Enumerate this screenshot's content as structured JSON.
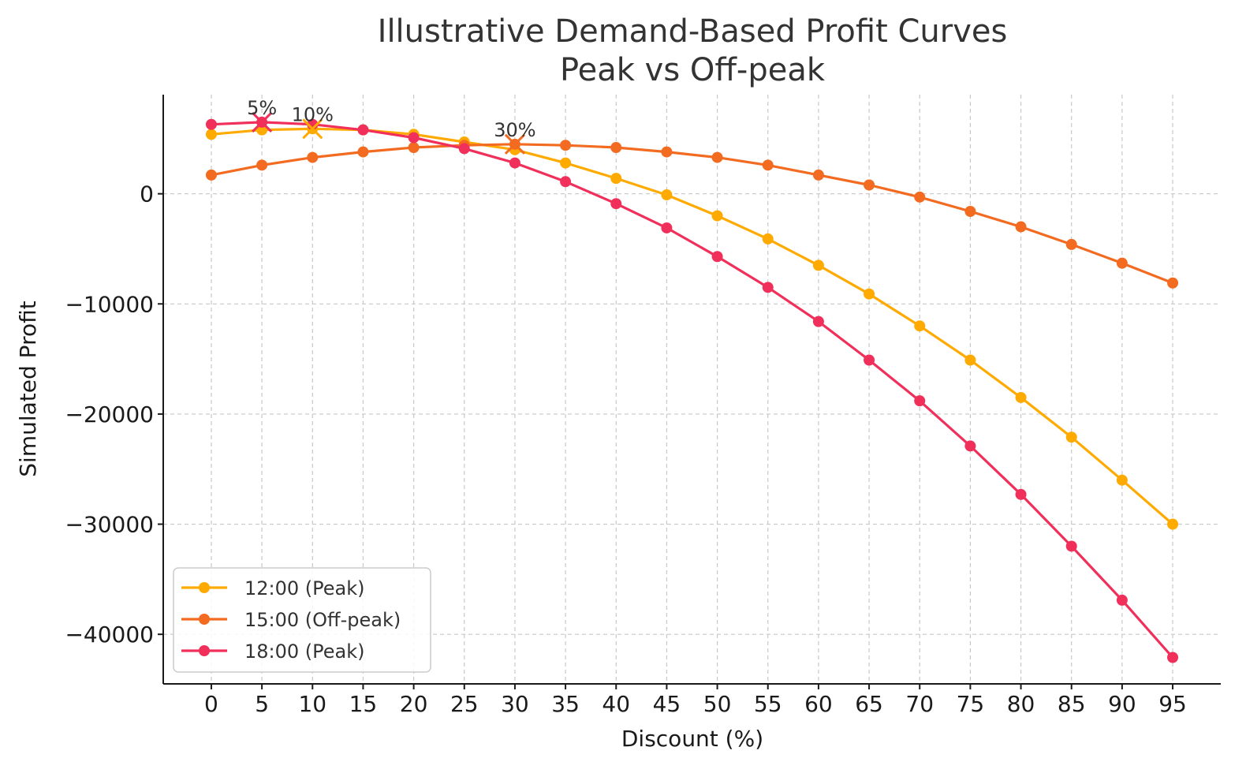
{
  "chart_data": {
    "type": "line",
    "title": "Illustrative Demand-Based Profit Curves",
    "subtitle": "Peak vs Off-peak",
    "xlabel": "Discount (%)",
    "ylabel": "Simulated Profit",
    "x": [
      0,
      5,
      10,
      15,
      20,
      25,
      30,
      35,
      40,
      45,
      50,
      55,
      60,
      65,
      70,
      75,
      80,
      85,
      90,
      95
    ],
    "xlim": [
      -4.75,
      99.75
    ],
    "ylim": [
      -44500,
      9000
    ],
    "x_ticks": [
      0,
      5,
      10,
      15,
      20,
      25,
      30,
      35,
      40,
      45,
      50,
      55,
      60,
      65,
      70,
      75,
      80,
      85,
      90,
      95
    ],
    "y_ticks": [
      0,
      -10000,
      -20000,
      -30000,
      -40000
    ],
    "y_tick_labels": [
      "0",
      "−10000",
      "−20000",
      "−30000",
      "−40000"
    ],
    "grid": true,
    "legend_position": "lower-left",
    "series": [
      {
        "name": "12:00 (Peak)",
        "color": "#FFAA00",
        "values": [
          5400,
          5800,
          5900,
          5800,
          5400,
          4700,
          4000,
          2800,
          1400,
          -100,
          -2000,
          -4100,
          -6500,
          -9100,
          -12000,
          -15100,
          -18500,
          -22100,
          -26000,
          -30000
        ]
      },
      {
        "name": "15:00 (Off-peak)",
        "color": "#F26B21",
        "values": [
          1700,
          2600,
          3300,
          3800,
          4200,
          4400,
          4500,
          4400,
          4200,
          3800,
          3300,
          2600,
          1700,
          800,
          -300,
          -1600,
          -3000,
          -4600,
          -6300,
          -8100
        ]
      },
      {
        "name": "18:00 (Peak)",
        "color": "#F0305A",
        "values": [
          6300,
          6500,
          6300,
          5800,
          5100,
          4100,
          2800,
          1100,
          -900,
          -3100,
          -5700,
          -8500,
          -11600,
          -15100,
          -18800,
          -22900,
          -27300,
          -32000,
          -36900,
          -42100
        ]
      }
    ],
    "annotations": [
      {
        "text": "5%",
        "x": 5,
        "y": 6500,
        "series": "18:00 (Peak)"
      },
      {
        "text": "10%",
        "x": 10,
        "y": 5900,
        "series": "12:00 (Peak)"
      },
      {
        "text": "30%",
        "x": 30,
        "y": 4500,
        "series": "15:00 (Off-peak)"
      }
    ]
  }
}
